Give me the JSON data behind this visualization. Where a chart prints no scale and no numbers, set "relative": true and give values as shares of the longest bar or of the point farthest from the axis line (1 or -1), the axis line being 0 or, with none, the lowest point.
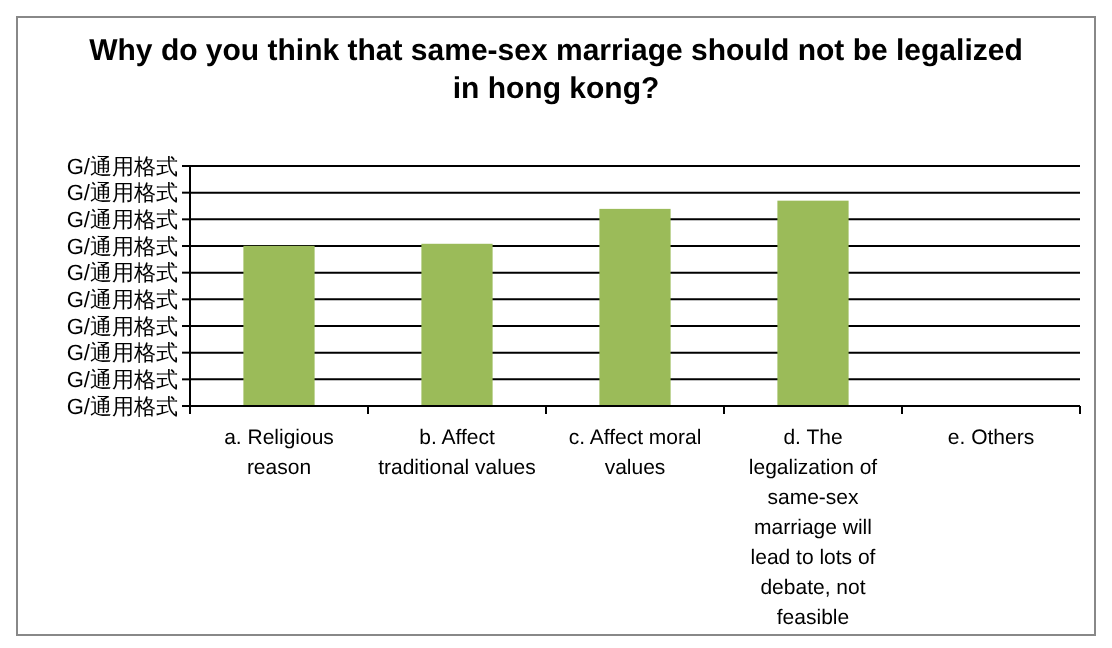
{
  "chart_data": {
    "type": "bar",
    "title": "Why do you think that same-sex marriage should not be legalized in hong kong?",
    "categories": [
      "a. Religious reason",
      "b. Affect traditional values",
      "c. Affect moral values",
      "d. The legalization of same-sex marriage will lead to lots of debate, not feasible",
      "e. Others"
    ],
    "values": [
      0.78,
      0.79,
      0.96,
      1,
      0
    ],
    "color": "#9bbb59",
    "relative": true,
    "annotations": [
      "G/通用格式"
    ],
    "grid": true
  }
}
